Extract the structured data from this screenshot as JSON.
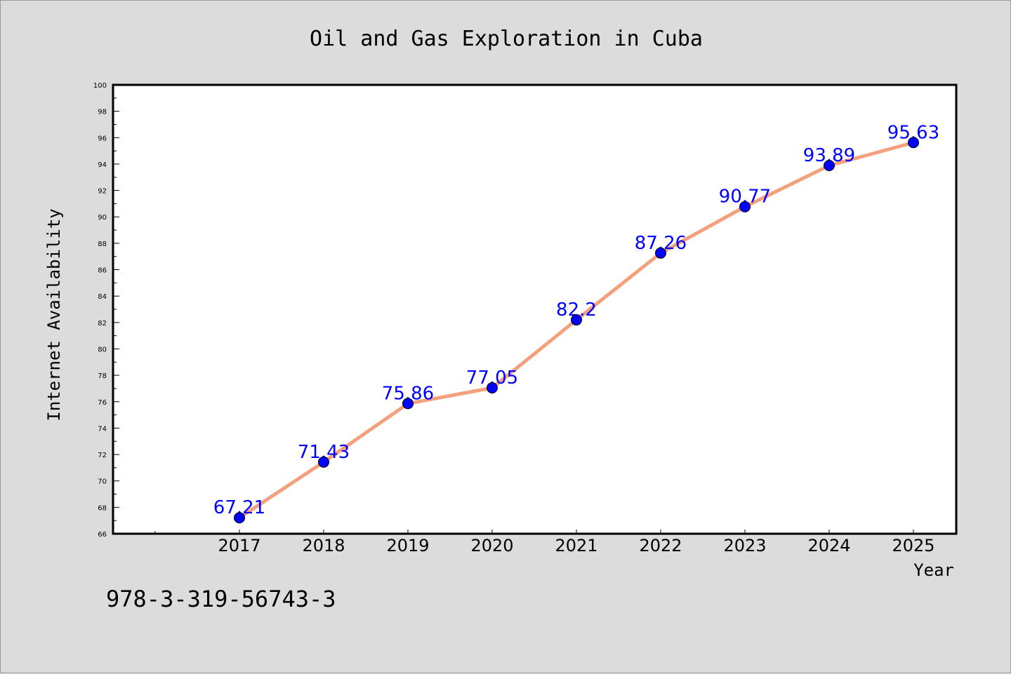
{
  "chart_data": {
    "type": "line",
    "title": "Oil and Gas Exploration in Cuba",
    "xlabel": "Year",
    "ylabel": "Internet Availability",
    "categories": [
      "2017",
      "2018",
      "2019",
      "2020",
      "2021",
      "2022",
      "2023",
      "2024",
      "2025"
    ],
    "series": [
      {
        "values": [
          67.21,
          71.43,
          75.86,
          77.05,
          82.2,
          87.26,
          90.77,
          93.89,
          95.63
        ],
        "labels": [
          "67.21",
          "71.43",
          "75.86",
          "77.05",
          "82.2",
          "87.26",
          "90.77",
          "93.89",
          "95.63"
        ]
      }
    ],
    "ylim": [
      66,
      100
    ],
    "ytick_labels": [
      "66",
      "68",
      "70",
      "72",
      "74",
      "76",
      "78",
      "80",
      "82",
      "84",
      "86",
      "88",
      "90",
      "92",
      "94",
      "96",
      "98",
      "100"
    ],
    "grid": false,
    "colors": {
      "line": "#f4a07c",
      "marker": "#0000ff",
      "label": "#0000ff",
      "background": "#dcdcdc",
      "plot_area": "#ffffff"
    }
  },
  "footnote": "978-3-319-56743-3"
}
